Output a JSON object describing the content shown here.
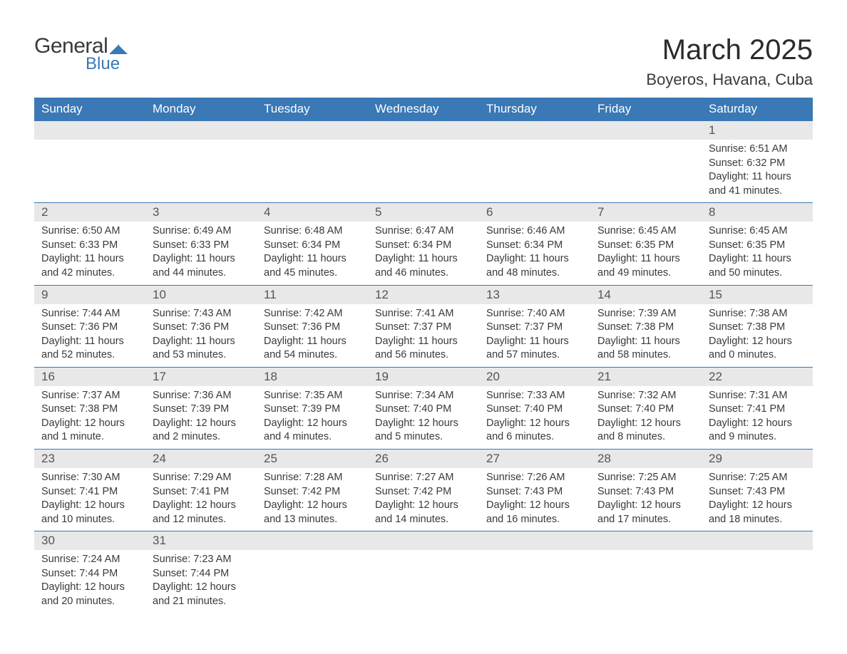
{
  "brand": {
    "word1": "General",
    "word2": "Blue",
    "mark_color": "#3a78b6"
  },
  "title": "March 2025",
  "location": "Boyeros, Havana, Cuba",
  "colors": {
    "header_bg": "#3a78b6",
    "header_fg": "#ffffff",
    "daynum_bg": "#e8e8e8",
    "rule": "#3a78b6",
    "text": "#3a3a3a"
  },
  "day_headers": [
    "Sunday",
    "Monday",
    "Tuesday",
    "Wednesday",
    "Thursday",
    "Friday",
    "Saturday"
  ],
  "weeks": [
    [
      null,
      null,
      null,
      null,
      null,
      null,
      {
        "n": "1",
        "sr": "Sunrise: 6:51 AM",
        "ss": "Sunset: 6:32 PM",
        "d1": "Daylight: 11 hours",
        "d2": "and 41 minutes."
      }
    ],
    [
      {
        "n": "2",
        "sr": "Sunrise: 6:50 AM",
        "ss": "Sunset: 6:33 PM",
        "d1": "Daylight: 11 hours",
        "d2": "and 42 minutes."
      },
      {
        "n": "3",
        "sr": "Sunrise: 6:49 AM",
        "ss": "Sunset: 6:33 PM",
        "d1": "Daylight: 11 hours",
        "d2": "and 44 minutes."
      },
      {
        "n": "4",
        "sr": "Sunrise: 6:48 AM",
        "ss": "Sunset: 6:34 PM",
        "d1": "Daylight: 11 hours",
        "d2": "and 45 minutes."
      },
      {
        "n": "5",
        "sr": "Sunrise: 6:47 AM",
        "ss": "Sunset: 6:34 PM",
        "d1": "Daylight: 11 hours",
        "d2": "and 46 minutes."
      },
      {
        "n": "6",
        "sr": "Sunrise: 6:46 AM",
        "ss": "Sunset: 6:34 PM",
        "d1": "Daylight: 11 hours",
        "d2": "and 48 minutes."
      },
      {
        "n": "7",
        "sr": "Sunrise: 6:45 AM",
        "ss": "Sunset: 6:35 PM",
        "d1": "Daylight: 11 hours",
        "d2": "and 49 minutes."
      },
      {
        "n": "8",
        "sr": "Sunrise: 6:45 AM",
        "ss": "Sunset: 6:35 PM",
        "d1": "Daylight: 11 hours",
        "d2": "and 50 minutes."
      }
    ],
    [
      {
        "n": "9",
        "sr": "Sunrise: 7:44 AM",
        "ss": "Sunset: 7:36 PM",
        "d1": "Daylight: 11 hours",
        "d2": "and 52 minutes."
      },
      {
        "n": "10",
        "sr": "Sunrise: 7:43 AM",
        "ss": "Sunset: 7:36 PM",
        "d1": "Daylight: 11 hours",
        "d2": "and 53 minutes."
      },
      {
        "n": "11",
        "sr": "Sunrise: 7:42 AM",
        "ss": "Sunset: 7:36 PM",
        "d1": "Daylight: 11 hours",
        "d2": "and 54 minutes."
      },
      {
        "n": "12",
        "sr": "Sunrise: 7:41 AM",
        "ss": "Sunset: 7:37 PM",
        "d1": "Daylight: 11 hours",
        "d2": "and 56 minutes."
      },
      {
        "n": "13",
        "sr": "Sunrise: 7:40 AM",
        "ss": "Sunset: 7:37 PM",
        "d1": "Daylight: 11 hours",
        "d2": "and 57 minutes."
      },
      {
        "n": "14",
        "sr": "Sunrise: 7:39 AM",
        "ss": "Sunset: 7:38 PM",
        "d1": "Daylight: 11 hours",
        "d2": "and 58 minutes."
      },
      {
        "n": "15",
        "sr": "Sunrise: 7:38 AM",
        "ss": "Sunset: 7:38 PM",
        "d1": "Daylight: 12 hours",
        "d2": "and 0 minutes."
      }
    ],
    [
      {
        "n": "16",
        "sr": "Sunrise: 7:37 AM",
        "ss": "Sunset: 7:38 PM",
        "d1": "Daylight: 12 hours",
        "d2": "and 1 minute."
      },
      {
        "n": "17",
        "sr": "Sunrise: 7:36 AM",
        "ss": "Sunset: 7:39 PM",
        "d1": "Daylight: 12 hours",
        "d2": "and 2 minutes."
      },
      {
        "n": "18",
        "sr": "Sunrise: 7:35 AM",
        "ss": "Sunset: 7:39 PM",
        "d1": "Daylight: 12 hours",
        "d2": "and 4 minutes."
      },
      {
        "n": "19",
        "sr": "Sunrise: 7:34 AM",
        "ss": "Sunset: 7:40 PM",
        "d1": "Daylight: 12 hours",
        "d2": "and 5 minutes."
      },
      {
        "n": "20",
        "sr": "Sunrise: 7:33 AM",
        "ss": "Sunset: 7:40 PM",
        "d1": "Daylight: 12 hours",
        "d2": "and 6 minutes."
      },
      {
        "n": "21",
        "sr": "Sunrise: 7:32 AM",
        "ss": "Sunset: 7:40 PM",
        "d1": "Daylight: 12 hours",
        "d2": "and 8 minutes."
      },
      {
        "n": "22",
        "sr": "Sunrise: 7:31 AM",
        "ss": "Sunset: 7:41 PM",
        "d1": "Daylight: 12 hours",
        "d2": "and 9 minutes."
      }
    ],
    [
      {
        "n": "23",
        "sr": "Sunrise: 7:30 AM",
        "ss": "Sunset: 7:41 PM",
        "d1": "Daylight: 12 hours",
        "d2": "and 10 minutes."
      },
      {
        "n": "24",
        "sr": "Sunrise: 7:29 AM",
        "ss": "Sunset: 7:41 PM",
        "d1": "Daylight: 12 hours",
        "d2": "and 12 minutes."
      },
      {
        "n": "25",
        "sr": "Sunrise: 7:28 AM",
        "ss": "Sunset: 7:42 PM",
        "d1": "Daylight: 12 hours",
        "d2": "and 13 minutes."
      },
      {
        "n": "26",
        "sr": "Sunrise: 7:27 AM",
        "ss": "Sunset: 7:42 PM",
        "d1": "Daylight: 12 hours",
        "d2": "and 14 minutes."
      },
      {
        "n": "27",
        "sr": "Sunrise: 7:26 AM",
        "ss": "Sunset: 7:43 PM",
        "d1": "Daylight: 12 hours",
        "d2": "and 16 minutes."
      },
      {
        "n": "28",
        "sr": "Sunrise: 7:25 AM",
        "ss": "Sunset: 7:43 PM",
        "d1": "Daylight: 12 hours",
        "d2": "and 17 minutes."
      },
      {
        "n": "29",
        "sr": "Sunrise: 7:25 AM",
        "ss": "Sunset: 7:43 PM",
        "d1": "Daylight: 12 hours",
        "d2": "and 18 minutes."
      }
    ],
    [
      {
        "n": "30",
        "sr": "Sunrise: 7:24 AM",
        "ss": "Sunset: 7:44 PM",
        "d1": "Daylight: 12 hours",
        "d2": "and 20 minutes."
      },
      {
        "n": "31",
        "sr": "Sunrise: 7:23 AM",
        "ss": "Sunset: 7:44 PM",
        "d1": "Daylight: 12 hours",
        "d2": "and 21 minutes."
      },
      null,
      null,
      null,
      null,
      null
    ]
  ]
}
